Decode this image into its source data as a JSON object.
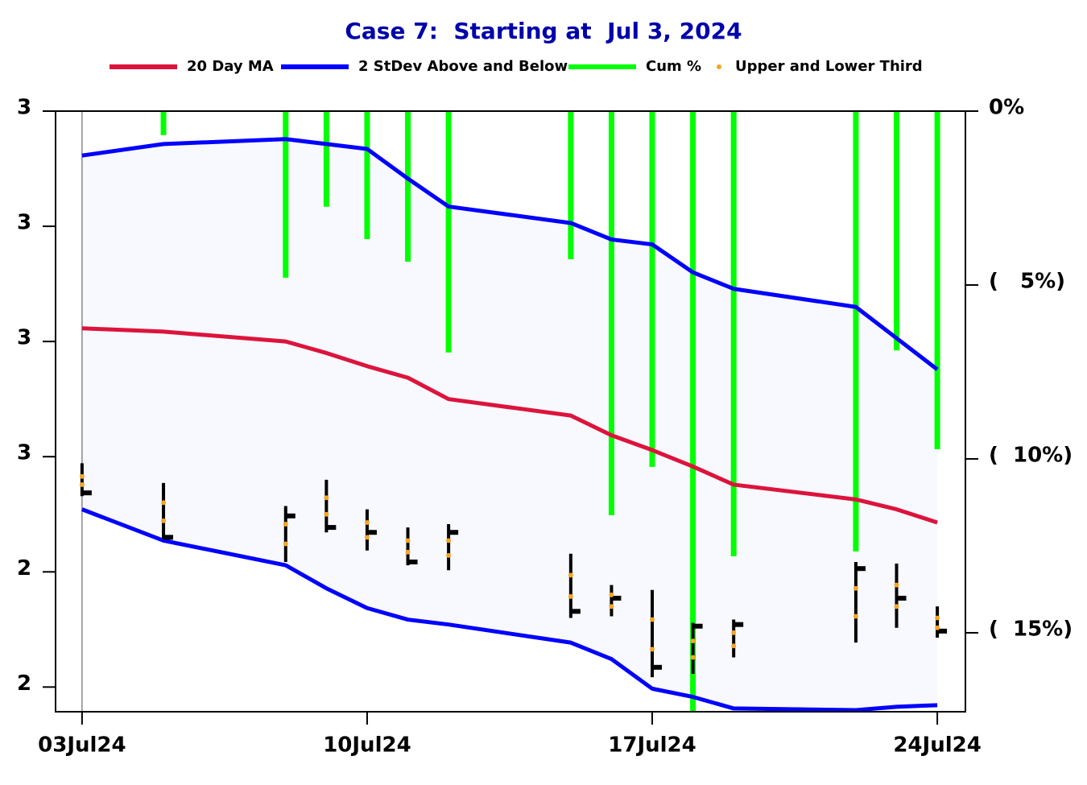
{
  "chart_data": {
    "type": "combo",
    "title": "Case 7:  Starting at  Jul 3, 2024",
    "x": [
      "2024-07-03",
      "2024-07-05",
      "2024-07-08",
      "2024-07-09",
      "2024-07-10",
      "2024-07-11",
      "2024-07-12",
      "2024-07-15",
      "2024-07-16",
      "2024-07-17",
      "2024-07-18",
      "2024-07-19",
      "2024-07-22",
      "2024-07-23",
      "2024-07-24"
    ],
    "xlim": [
      "2024-07-02T08:24:00Z",
      "2024-07-24T16:34:00Z"
    ],
    "xticks": [
      {
        "value": "2024-07-03",
        "label": "03Jul24"
      },
      {
        "value": "2024-07-10",
        "label": "10Jul24"
      },
      {
        "value": "2024-07-17",
        "label": "17Jul24"
      },
      {
        "value": "2024-07-24",
        "label": "24Jul24"
      }
    ],
    "ylim": [
      2.385,
      2.75
    ],
    "yticks": [
      {
        "value": 2.75,
        "label": "3"
      },
      {
        "value": 2.68,
        "label": "3"
      },
      {
        "value": 2.61,
        "label": "3"
      },
      {
        "value": 2.54,
        "label": "3"
      },
      {
        "value": 2.47,
        "label": "2"
      },
      {
        "value": 2.4,
        "label": "2"
      }
    ],
    "y2lim": [
      0,
      -17.27
    ],
    "y2ticks": [
      {
        "value": 0,
        "label": "0%"
      },
      {
        "value": -5,
        "label": "(   5%)"
      },
      {
        "value": -10,
        "label": "(  10%)"
      },
      {
        "value": -15,
        "label": "(  15%)"
      }
    ],
    "ma": {
      "name": "20 Day MA",
      "color": "#dc143c",
      "values": [
        2.618,
        2.616,
        2.61,
        2.603,
        2.595,
        2.588,
        2.575,
        2.565,
        2.553,
        2.544,
        2.534,
        2.523,
        2.514,
        2.508,
        2.5
      ]
    },
    "band": {
      "name": "2 StDev Above and Below",
      "color": "#0000ff",
      "fill": "#f8f8ff",
      "upper": [
        2.723,
        2.73,
        2.733,
        2.73,
        2.727,
        2.709,
        2.692,
        2.682,
        2.672,
        2.669,
        2.652,
        2.642,
        2.631,
        2.612,
        2.593
      ],
      "lower": [
        2.508,
        2.489,
        2.474,
        2.46,
        2.448,
        2.441,
        2.438,
        2.427,
        2.417,
        2.399,
        2.394,
        2.387,
        2.386,
        2.388,
        2.389
      ]
    },
    "cum": {
      "name": "Cum %",
      "color": "#00ff00",
      "axis": "y2",
      "values": [
        0,
        -0.69,
        -4.79,
        -2.75,
        -3.68,
        -4.33,
        -6.94,
        -4.26,
        -11.62,
        -10.23,
        -17.27,
        -12.8,
        -12.66,
        -6.88,
        -9.72
      ]
    },
    "thirds": {
      "name": "Upper and Lower Third",
      "color": "#f5a623",
      "upper": [
        2.528,
        2.512,
        2.499,
        2.515,
        2.5,
        2.489,
        2.489,
        2.468,
        2.456,
        2.441,
        2.428,
        2.433,
        2.46,
        2.462,
        2.442
      ],
      "lower": [
        2.523,
        2.501,
        2.487,
        2.505,
        2.491,
        2.482,
        2.48,
        2.455,
        2.449,
        2.423,
        2.418,
        2.425,
        2.443,
        2.449,
        2.436
      ]
    },
    "ohlc": {
      "color": "#000000",
      "high": [
        2.536,
        2.524,
        2.51,
        2.526,
        2.508,
        2.497,
        2.499,
        2.481,
        2.462,
        2.459,
        2.439,
        2.441,
        2.476,
        2.475,
        2.449
      ],
      "low": [
        2.516,
        2.49,
        2.476,
        2.494,
        2.483,
        2.474,
        2.471,
        2.442,
        2.443,
        2.406,
        2.408,
        2.418,
        2.427,
        2.436,
        2.43
      ],
      "close": [
        2.518,
        2.491,
        2.504,
        2.497,
        2.494,
        2.476,
        2.494,
        2.446,
        2.454,
        2.412,
        2.437,
        2.438,
        2.472,
        2.454,
        2.434
      ]
    }
  }
}
